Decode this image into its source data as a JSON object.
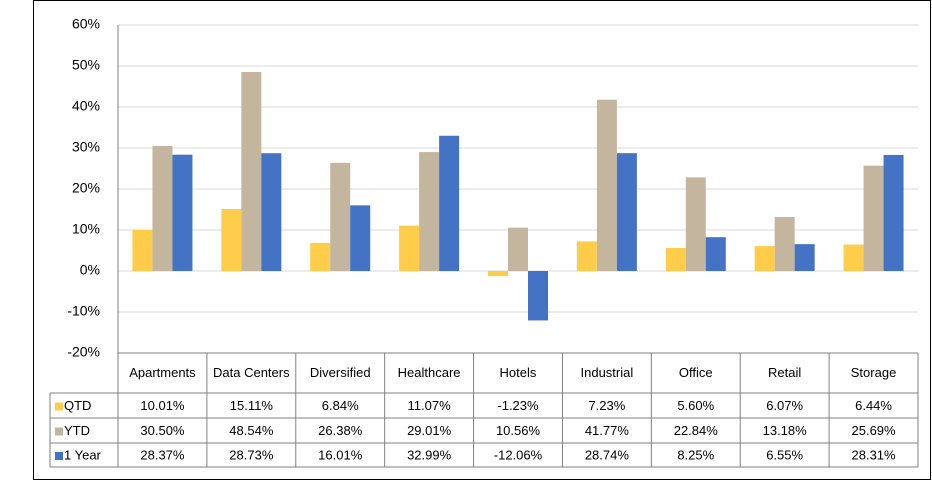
{
  "chart_data": {
    "type": "bar",
    "categories": [
      "Apartments",
      "Data Centers",
      "Diversified",
      "Healthcare",
      "Hotels",
      "Industrial",
      "Office",
      "Retail",
      "Storage"
    ],
    "series": [
      {
        "name": "QTD",
        "color": "#ffcd4a",
        "values": [
          10.01,
          15.11,
          6.84,
          11.07,
          -1.23,
          7.23,
          5.6,
          6.07,
          6.44
        ],
        "value_labels": [
          "10.01%",
          "15.11%",
          "6.84%",
          "11.07%",
          "-1.23%",
          "7.23%",
          "5.60%",
          "6.07%",
          "6.44%"
        ]
      },
      {
        "name": "YTD",
        "color": "#c4b59e",
        "values": [
          30.5,
          48.54,
          26.38,
          29.01,
          10.56,
          41.77,
          22.84,
          13.18,
          25.69
        ],
        "value_labels": [
          "30.50%",
          "48.54%",
          "26.38%",
          "29.01%",
          "10.56%",
          "41.77%",
          "22.84%",
          "13.18%",
          "25.69%"
        ]
      },
      {
        "name": "1 Year",
        "color": "#4472c4",
        "values": [
          28.37,
          28.73,
          16.01,
          32.99,
          -12.06,
          28.74,
          8.25,
          6.55,
          28.31
        ],
        "value_labels": [
          "28.37%",
          "28.73%",
          "16.01%",
          "32.99%",
          "-12.06%",
          "28.74%",
          "8.25%",
          "6.55%",
          "28.31%"
        ]
      }
    ],
    "ylim": [
      -20,
      60
    ],
    "yticks": [
      {
        "value": -20,
        "label": "-20%"
      },
      {
        "value": -10,
        "label": "-10%"
      },
      {
        "value": 0,
        "label": "0%"
      },
      {
        "value": 10,
        "label": "10%"
      },
      {
        "value": 20,
        "label": "20%"
      },
      {
        "value": 30,
        "label": "30%"
      },
      {
        "value": 40,
        "label": "40%"
      },
      {
        "value": 50,
        "label": "50%"
      },
      {
        "value": 60,
        "label": "60%"
      }
    ],
    "grid": true,
    "data_table": true
  }
}
